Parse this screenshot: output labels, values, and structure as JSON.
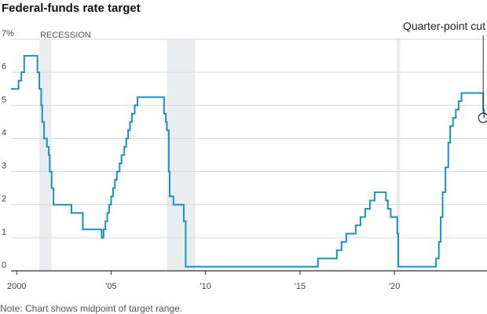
{
  "title": "Federal-funds rate target",
  "note": "Note: Chart shows midpoint of target range.",
  "colors": {
    "line": "#1a8fc9",
    "grid": "#d9d9d9",
    "recession": "#eaedf0",
    "axis": "#333333"
  },
  "chart_data": {
    "type": "line",
    "title": "Federal-funds rate target",
    "xlabel": "",
    "ylabel": "",
    "xlim": [
      1999.7,
      2024.9
    ],
    "ylim": [
      0,
      7
    ],
    "y_ticks": [
      0,
      1,
      2,
      3,
      4,
      5,
      6,
      7
    ],
    "y_tick_labels": [
      "0",
      "1",
      "2",
      "3",
      "4",
      "5",
      "6",
      "7%"
    ],
    "x_ticks": [
      2000,
      2005,
      2010,
      2015,
      2020
    ],
    "x_tick_labels": [
      "2000",
      "'05",
      "'10",
      "'15",
      "'20"
    ],
    "grid": true,
    "recessions": [
      [
        2001.2,
        2001.85
      ],
      [
        2007.95,
        2009.45
      ],
      [
        2020.1,
        2020.3
      ]
    ],
    "recession_label": "RECESSION",
    "annotation": {
      "text": "Quarter-point cut",
      "x": 2024.7,
      "y": 4.625
    },
    "series": [
      {
        "x": [
          1999.7,
          1999.9,
          2000.1,
          2000.25,
          2000.4,
          2000.95,
          2001.1,
          2001.2,
          2001.3,
          2001.35,
          2001.45,
          2001.6,
          2001.7,
          2001.75,
          2001.85,
          2001.95,
          2002.9,
          2003.5,
          2004.5,
          2004.6,
          2004.7,
          2004.8,
          2004.9,
          2005.0,
          2005.1,
          2005.2,
          2005.3,
          2005.45,
          2005.55,
          2005.7,
          2005.8,
          2005.9,
          2006.0,
          2006.1,
          2006.25,
          2006.4,
          2007.7,
          2007.8,
          2007.9,
          2007.95,
          2008.05,
          2008.1,
          2008.3,
          2008.4,
          2008.85,
          2008.95,
          2014.7,
          2015.95,
          2016.95,
          2017.2,
          2017.45,
          2017.95,
          2018.2,
          2018.45,
          2018.7,
          2018.95,
          2019.55,
          2019.65,
          2019.8,
          2020.15,
          2020.2,
          2022.2,
          2022.35,
          2022.45,
          2022.55,
          2022.7,
          2022.85,
          2022.95,
          2023.1,
          2023.25,
          2023.4,
          2023.55,
          2024.7,
          2024.75
        ],
        "y": [
          5.5,
          5.5,
          5.75,
          6.0,
          6.5,
          6.5,
          6.0,
          5.5,
          5.0,
          4.5,
          4.0,
          3.75,
          3.5,
          3.0,
          2.5,
          2.0,
          1.75,
          1.25,
          1.0,
          1.25,
          1.5,
          1.75,
          2.0,
          2.25,
          2.5,
          2.75,
          3.0,
          3.25,
          3.5,
          3.75,
          4.0,
          4.25,
          4.5,
          4.75,
          5.0,
          5.25,
          5.25,
          4.75,
          4.5,
          4.25,
          3.0,
          2.25,
          2.0,
          2.0,
          1.5,
          0.125,
          0.125,
          0.375,
          0.625,
          0.875,
          1.125,
          1.375,
          1.625,
          1.875,
          2.125,
          2.375,
          2.125,
          1.875,
          1.625,
          1.125,
          0.125,
          0.375,
          0.875,
          1.625,
          2.375,
          3.125,
          3.875,
          4.375,
          4.625,
          4.875,
          5.125,
          5.375,
          4.875,
          4.625
        ]
      }
    ]
  }
}
